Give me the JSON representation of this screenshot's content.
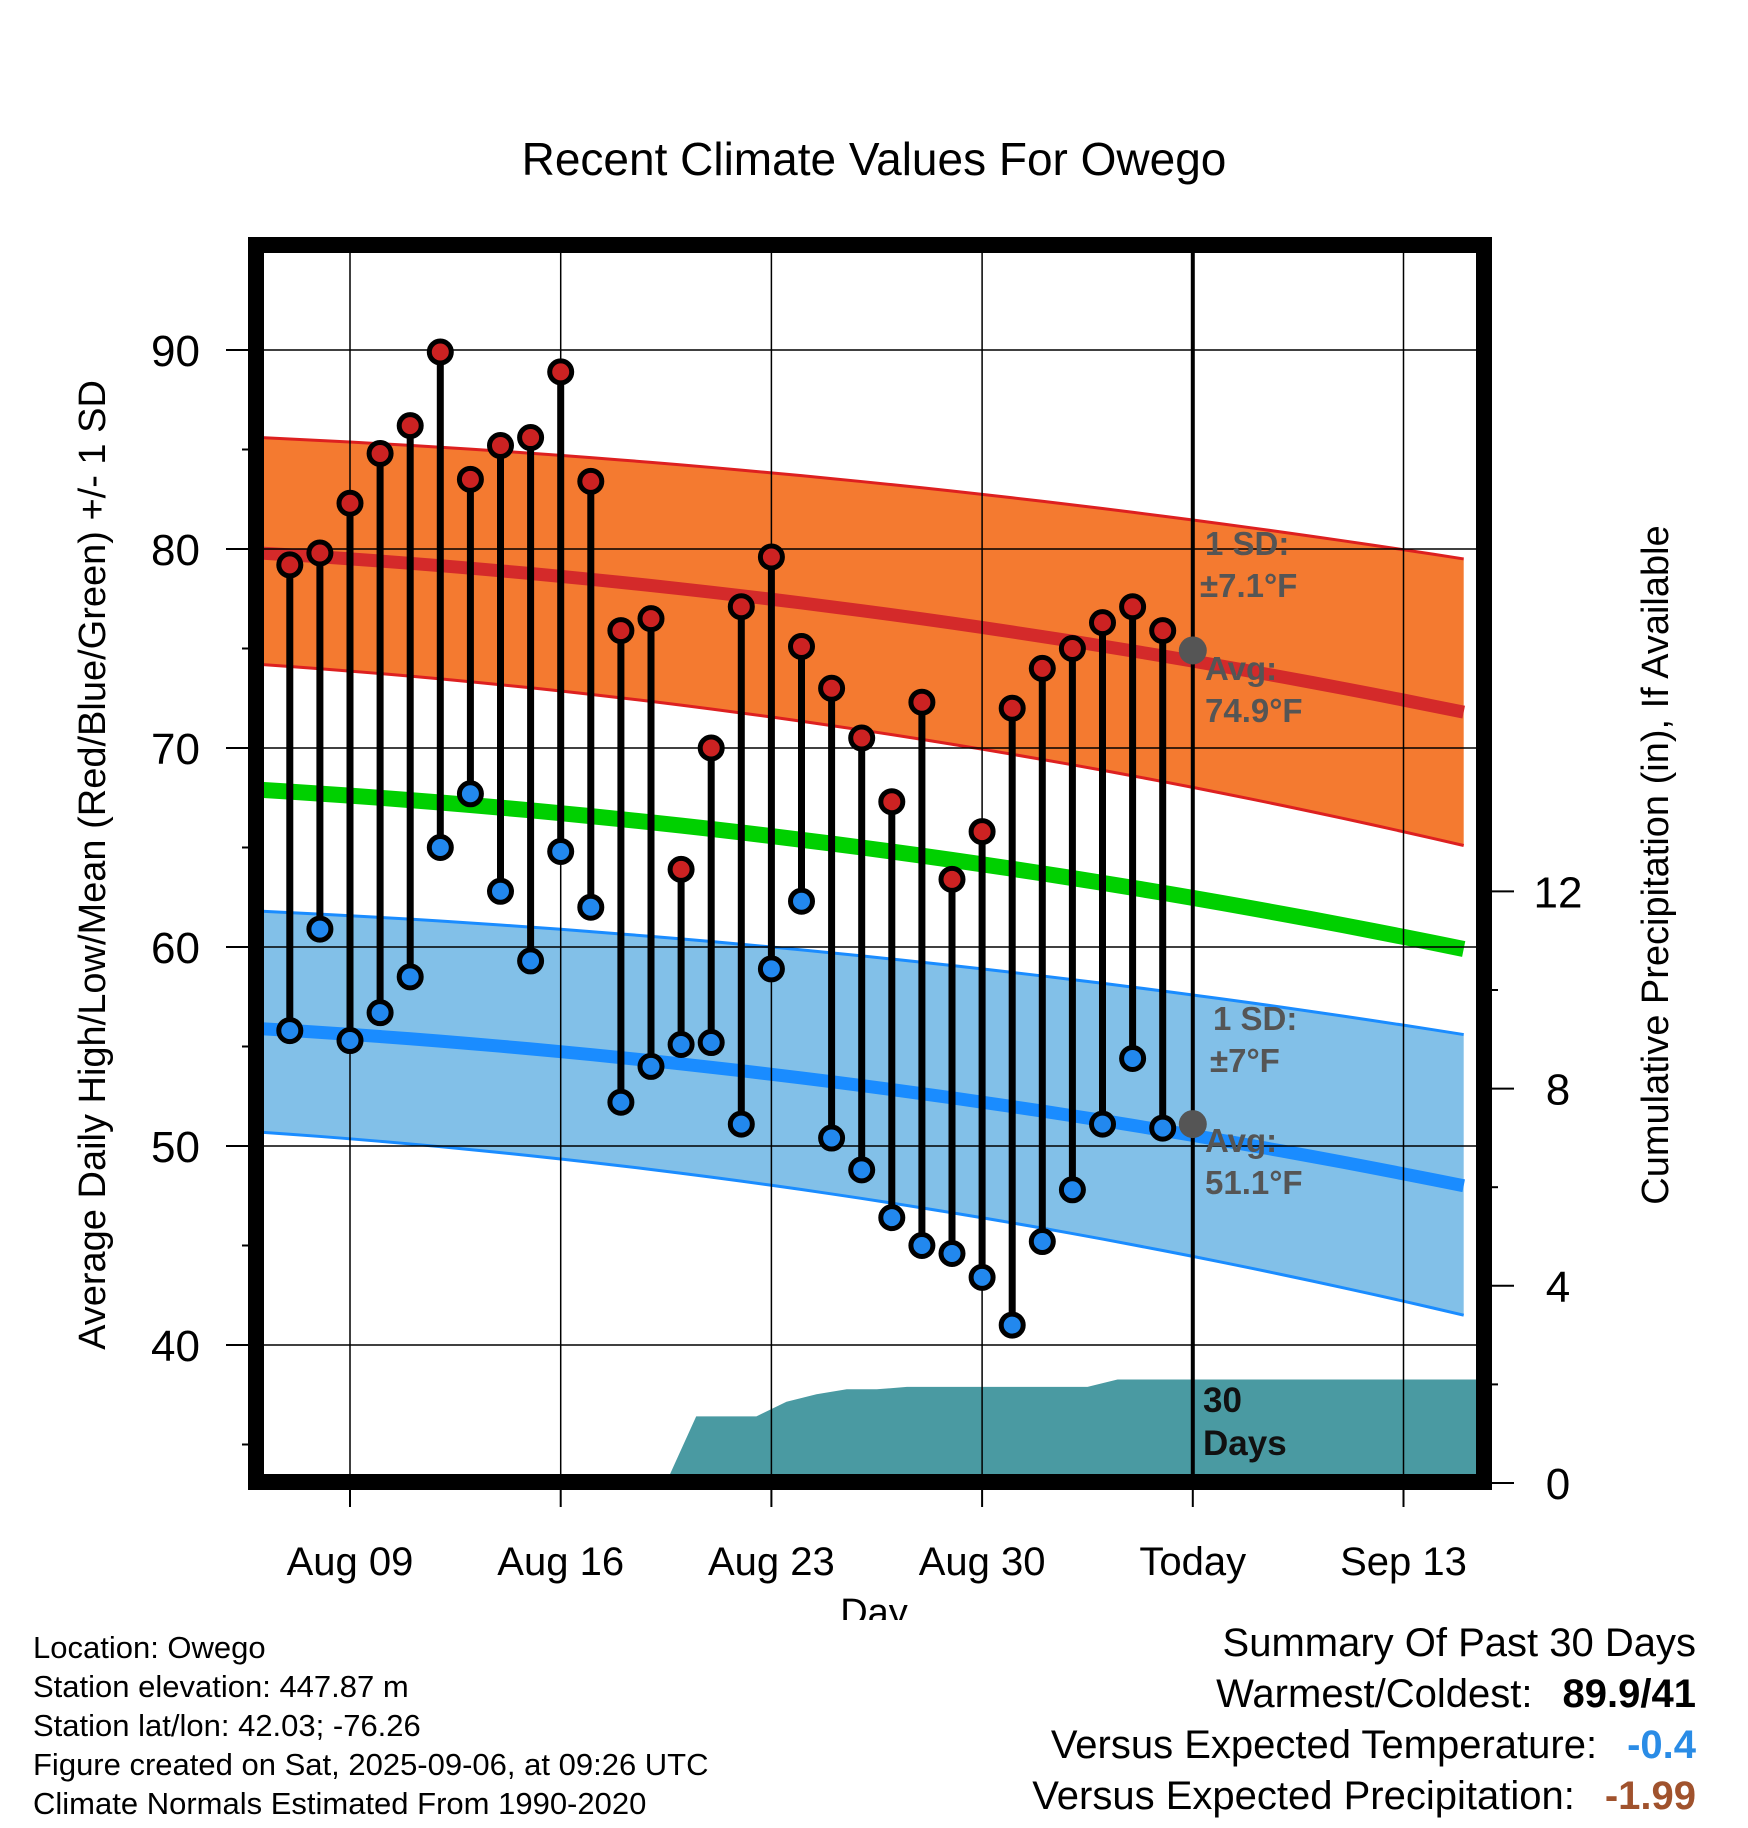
{
  "chart_data": {
    "type": "line",
    "title": "Recent Climate Values For Owego",
    "xlabel": "Day",
    "ylabel_left": "Average Daily High/Low/Mean (Red/Blue/Green) +/- 1 SD",
    "ylabel_right": "Cumulative Precipitation (in), If Available",
    "x_tick_labels": [
      "Aug 09",
      "Aug 16",
      "Aug 23",
      "Aug 30",
      "Today",
      "Sep 13"
    ],
    "y_left_ticks": [
      40,
      50,
      60,
      70,
      80,
      90
    ],
    "y_right_ticks": [
      0,
      4,
      8,
      12
    ],
    "ylim_left": [
      33.5,
      95
    ],
    "ylim_right": [
      0,
      33
    ],
    "days": [
      "Aug 07",
      "Aug 08",
      "Aug 09",
      "Aug 10",
      "Aug 11",
      "Aug 12",
      "Aug 13",
      "Aug 14",
      "Aug 15",
      "Aug 16",
      "Aug 17",
      "Aug 18",
      "Aug 19",
      "Aug 20",
      "Aug 21",
      "Aug 22",
      "Aug 23",
      "Aug 24",
      "Aug 25",
      "Aug 26",
      "Aug 27",
      "Aug 28",
      "Aug 29",
      "Aug 30",
      "Aug 31",
      "Sep 01",
      "Sep 02",
      "Sep 03",
      "Sep 04",
      "Sep 05"
    ],
    "series": [
      {
        "name": "Daily High",
        "color": "#cc2222",
        "values": [
          79.2,
          79.8,
          82.3,
          84.8,
          86.2,
          89.9,
          83.5,
          85.2,
          85.6,
          88.9,
          83.4,
          75.9,
          76.5,
          63.9,
          70.0,
          77.1,
          79.6,
          75.1,
          73.0,
          70.5,
          67.3,
          72.3,
          63.4,
          65.8,
          72.0,
          74.0,
          75.0,
          76.3,
          77.1,
          75.9
        ]
      },
      {
        "name": "Daily Low",
        "color": "#2288ee",
        "values": [
          55.8,
          60.9,
          55.3,
          56.7,
          58.5,
          65.0,
          67.7,
          62.8,
          59.3,
          64.8,
          62.0,
          52.2,
          54.0,
          55.1,
          55.2,
          51.1,
          58.9,
          62.3,
          50.4,
          48.8,
          46.4,
          45.0,
          44.6,
          43.4,
          41.0,
          45.2,
          47.8,
          51.1,
          54.4,
          50.9
        ]
      }
    ],
    "normals": {
      "x_range": [
        "Aug 06",
        "Sep 15"
      ],
      "high_avg": [
        79.8,
        71.8
      ],
      "high_upper": [
        85.6,
        79.5
      ],
      "high_lower": [
        74.2,
        65.1
      ],
      "low_avg": [
        55.9,
        48.0
      ],
      "low_upper": [
        61.8,
        55.6
      ],
      "low_lower": [
        50.7,
        41.5
      ],
      "mean_avg": [
        67.9,
        59.9
      ],
      "colors": {
        "high_band": "#f47a30",
        "high_line": "#d42a2a",
        "low_band": "#82c0e8",
        "low_line": "#1a8cff",
        "mean_line": "#00d000",
        "precip": "#4a9aa2"
      }
    },
    "precipitation_cumulative": [
      0,
      0,
      0,
      0,
      0,
      0,
      0,
      0,
      0,
      0,
      0,
      0,
      0,
      0,
      1.35,
      1.35,
      1.35,
      1.65,
      1.8,
      1.9,
      1.9,
      1.95,
      1.95,
      1.95,
      1.95,
      1.95,
      1.95,
      1.95,
      2.1,
      2.1,
      2.1
    ],
    "annotations": {
      "high_sd": "1 SD:",
      "high_sd_value": "±7.1°F",
      "high_avg_label": "Avg:",
      "high_avg_value": "74.9°F",
      "low_sd": "1 SD:",
      "low_sd_value": "±7°F",
      "low_avg_label": "Avg:",
      "low_avg_value": "51.1°F",
      "precip_label_1": "30",
      "precip_label_2": "Days",
      "today_high": 74.9,
      "today_low": 51.1
    },
    "grid": true
  },
  "info": {
    "location": "Location: Owego",
    "elevation": "Station elevation: 447.87 m",
    "latlon": "Station lat/lon: 42.03; -76.26",
    "created": "Figure created on Sat, 2025-09-06, at 09:26 UTC",
    "normals": "Climate Normals Estimated From 1990-2020"
  },
  "summary": {
    "title": "Summary Of Past 30 Days",
    "warmest_label": "Warmest/Coldest:",
    "warmest_value": "89.9/41",
    "temp_label": "Versus Expected Temperature:",
    "temp_value": "-0.4",
    "temp_color": "#2a8ce6",
    "precip_label": "Versus Expected Precipitation:",
    "precip_value": "-1.99",
    "precip_color": "#a0522d"
  }
}
